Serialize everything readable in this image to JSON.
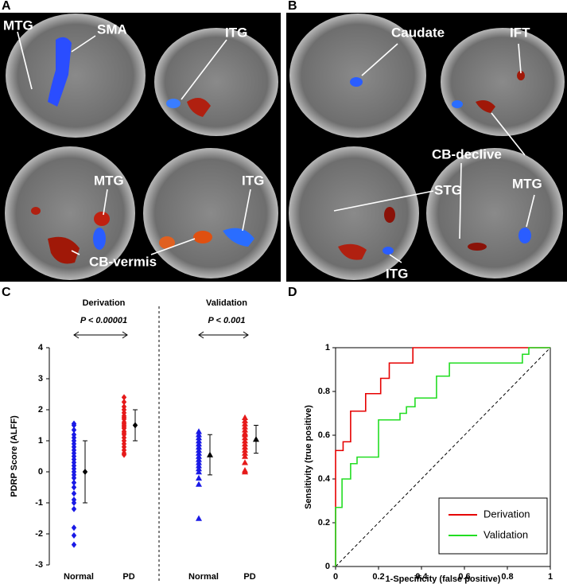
{
  "panels": [
    {
      "letter": "A",
      "labels": [
        "MTG",
        "SMA",
        "ITG",
        "MTG",
        "ITG",
        "CB-vermis"
      ]
    },
    {
      "letter": "B",
      "labels": [
        "Caudate",
        "IFT",
        "CB-declive",
        "MTG",
        "STG",
        "ITG"
      ]
    }
  ],
  "chart_data": [
    {
      "type": "strip",
      "panel": "C",
      "ylabel": "PDRP Score (ALFF)",
      "ylim": [
        -3,
        4
      ],
      "yticks": [
        -3,
        -2,
        -1,
        0,
        1,
        2,
        3,
        4
      ],
      "categories": [
        "Normal",
        "PD",
        "Normal",
        "PD"
      ],
      "groups": [
        {
          "label": "Derivation",
          "annotation": "P < 0.00001"
        },
        {
          "label": "Validation",
          "annotation": "P < 0.001"
        }
      ],
      "series": [
        {
          "color": "#1a1ae6",
          "marker": "diamond",
          "mean": 0,
          "sd": 1,
          "values": [
            1.55,
            1.5,
            1.35,
            1.2,
            1.1,
            1.0,
            0.9,
            0.8,
            0.7,
            0.6,
            0.5,
            0.4,
            0.3,
            0.2,
            0.1,
            0,
            -0.1,
            -0.2,
            -0.35,
            -0.5,
            -0.7,
            -0.9,
            -1.0,
            -1.2,
            -1.8,
            -2.05,
            -2.35
          ]
        },
        {
          "color": "#e61a1a",
          "marker": "diamond",
          "mean": 1.5,
          "sd": 0.5,
          "values": [
            2.4,
            2.25,
            2.1,
            2.0,
            1.9,
            1.8,
            1.75,
            1.7,
            1.6,
            1.55,
            1.5,
            1.45,
            1.4,
            1.3,
            1.25,
            1.2,
            1.1,
            1.0,
            0.9,
            0.8,
            0.7,
            0.6,
            0.55
          ]
        },
        {
          "color": "#1a1ae6",
          "marker": "triangle",
          "mean": 0.55,
          "sd": 0.65,
          "values": [
            1.3,
            1.2,
            1.1,
            1.0,
            0.9,
            0.8,
            0.7,
            0.6,
            0.5,
            0.4,
            0.3,
            0.2,
            0.1,
            0,
            -0.2,
            -0.4,
            -1.5
          ]
        },
        {
          "color": "#e61a1a",
          "marker": "triangle",
          "mean": 1.05,
          "sd": 0.45,
          "values": [
            1.75,
            1.65,
            1.55,
            1.45,
            1.35,
            1.25,
            1.2,
            1.1,
            1.0,
            0.9,
            0.8,
            0.7,
            0.6,
            0.5,
            0.3,
            0.05,
            0.0
          ]
        }
      ]
    },
    {
      "type": "roc",
      "panel": "D",
      "xlabel": "1-Specificity (false positive)",
      "ylabel": "Sensitivity (true positive)",
      "xlim": [
        0,
        1
      ],
      "ylim": [
        0,
        1
      ],
      "xticks": [
        0,
        0.2,
        0.4,
        0.6,
        0.8,
        1
      ],
      "yticks": [
        0,
        0.2,
        0.4,
        0.6,
        0.8,
        1
      ],
      "legend": "lower right",
      "series": [
        {
          "name": "Derivation",
          "color": "#e60000",
          "x": [
            0,
            0,
            0.035,
            0.035,
            0.07,
            0.07,
            0.14,
            0.14,
            0.21,
            0.21,
            0.25,
            0.25,
            0.36,
            0.36,
            1
          ],
          "values": [
            0,
            0.53,
            0.53,
            0.57,
            0.57,
            0.71,
            0.71,
            0.79,
            0.79,
            0.86,
            0.86,
            0.93,
            0.93,
            1,
            1
          ]
        },
        {
          "name": "Validation",
          "color": "#22dd22",
          "x": [
            0,
            0,
            0.03,
            0.03,
            0.07,
            0.07,
            0.1,
            0.1,
            0.2,
            0.2,
            0.3,
            0.3,
            0.33,
            0.33,
            0.37,
            0.37,
            0.47,
            0.47,
            0.53,
            0.53,
            0.87,
            0.87,
            0.9,
            0.9,
            1
          ],
          "values": [
            0,
            0.27,
            0.27,
            0.4,
            0.4,
            0.47,
            0.47,
            0.5,
            0.5,
            0.67,
            0.67,
            0.7,
            0.7,
            0.73,
            0.73,
            0.77,
            0.77,
            0.87,
            0.87,
            0.93,
            0.93,
            0.97,
            0.97,
            1,
            1
          ]
        }
      ]
    }
  ]
}
